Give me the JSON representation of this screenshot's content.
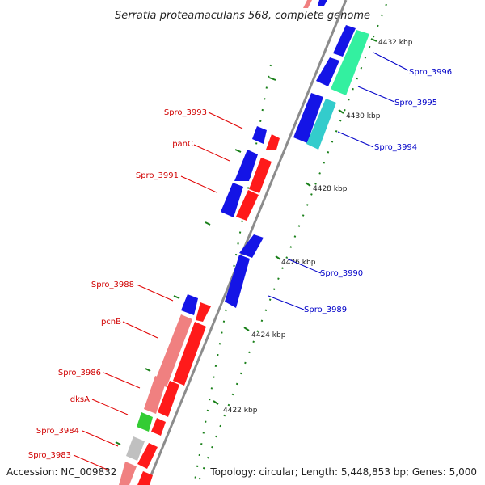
{
  "title": "Serratia proteamaculans 568, complete genome",
  "footer": {
    "accession": "Accession: NC_009832",
    "summary": "Topology: circular; Length: 5,448,853 bp; Genes: 5,000"
  },
  "colors": {
    "forward": "#ff1a1a",
    "reverse": "#1414e6",
    "pink": "#f08080",
    "cyan": "#33cccc",
    "mint": "#33f0a0",
    "green": "#33cc33",
    "gray": "#c0c0c0",
    "backbone": "#8c8c8c",
    "tick": "#1a801a"
  },
  "ticks": [
    "4432 kbp",
    "4430 kbp",
    "4428 kbp",
    "4426 kbp",
    "4424 kbp",
    "4422 kbp"
  ],
  "genes_left": [
    "Spro_3993",
    "panC",
    "Spro_3991",
    "Spro_3988",
    "pcnB",
    "Spro_3986",
    "dksA",
    "Spro_3984",
    "Spro_3983"
  ],
  "genes_right": [
    "Spro_3996",
    "Spro_3995",
    "Spro_3994",
    "Spro_3990",
    "Spro_3989"
  ]
}
